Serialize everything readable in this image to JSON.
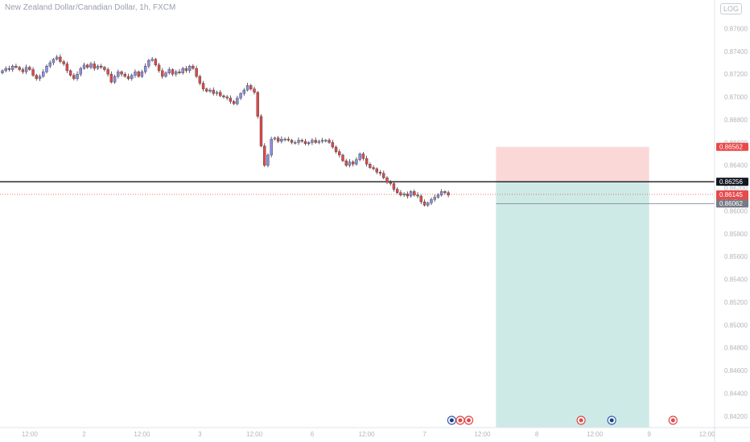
{
  "header": {
    "title": "New Zealand Dollar/Canadian Dollar, 1h, FXCM",
    "log_button": "LOG"
  },
  "colors": {
    "up": "#8c8ce6",
    "down": "#e04848",
    "wick": "#3c3c3c",
    "stop_zone": "#fbd8d8",
    "target_zone": "#cdeae7",
    "hline": "#000000",
    "price_label_red": "#e84a4a",
    "price_label_dark": "#131722",
    "price_label_gray": "#787b86"
  },
  "chart_data": {
    "type": "candlestick",
    "symbol": "NZDCAD",
    "timeframe": "1h",
    "ylim": [
      0.841,
      0.8785
    ],
    "yticks": [
      "0.87600",
      "0.87400",
      "0.87200",
      "0.87000",
      "0.86800",
      "0.86600",
      "0.86400",
      "0.86200",
      "0.86000",
      "0.85800",
      "0.85600",
      "0.85400",
      "0.85200",
      "0.85000",
      "0.84800",
      "0.84600",
      "0.84400",
      "0.84200"
    ],
    "ytick_values": [
      0.876,
      0.874,
      0.872,
      0.87,
      0.868,
      0.866,
      0.864,
      0.862,
      0.86,
      0.858,
      0.856,
      0.854,
      0.852,
      0.85,
      0.848,
      0.846,
      0.844,
      0.842
    ],
    "xticks": [
      {
        "label": "12:00",
        "bar": 8
      },
      {
        "label": "2",
        "bar": 24
      },
      {
        "label": "12:00",
        "bar": 41
      },
      {
        "label": "3",
        "bar": 58
      },
      {
        "label": "12:00",
        "bar": 74
      },
      {
        "label": "6",
        "bar": 91
      },
      {
        "label": "12:00",
        "bar": 107
      },
      {
        "label": "7",
        "bar": 124
      },
      {
        "label": "12:00",
        "bar": 141
      },
      {
        "label": "8",
        "bar": 157
      },
      {
        "label": "12:00",
        "bar": 174
      },
      {
        "label": "9",
        "bar": 190
      },
      {
        "label": "12:00",
        "bar": 207
      }
    ],
    "closes": [
      0.8723,
      0.8725,
      0.8724,
      0.8727,
      0.8726,
      0.8724,
      0.8722,
      0.8726,
      0.8724,
      0.8719,
      0.8716,
      0.8718,
      0.8722,
      0.8727,
      0.873,
      0.8733,
      0.8735,
      0.8731,
      0.8729,
      0.8723,
      0.8719,
      0.8716,
      0.872,
      0.8725,
      0.8728,
      0.8726,
      0.8729,
      0.8725,
      0.8727,
      0.8726,
      0.8724,
      0.872,
      0.8713,
      0.8718,
      0.8722,
      0.872,
      0.8718,
      0.8716,
      0.8719,
      0.8722,
      0.8718,
      0.8722,
      0.8727,
      0.8732,
      0.8733,
      0.8728,
      0.8723,
      0.8718,
      0.8721,
      0.8724,
      0.872,
      0.8722,
      0.8721,
      0.8725,
      0.8723,
      0.8727,
      0.8725,
      0.8718,
      0.8712,
      0.8707,
      0.8705,
      0.8706,
      0.8703,
      0.8704,
      0.8701,
      0.87,
      0.8699,
      0.8696,
      0.8694,
      0.8699,
      0.8703,
      0.8706,
      0.871,
      0.8707,
      0.8704,
      0.8683,
      0.8657,
      0.864,
      0.8649,
      0.8663,
      0.8664,
      0.8661,
      0.8663,
      0.8663,
      0.8662,
      0.866,
      0.866,
      0.8662,
      0.8661,
      0.8659,
      0.866,
      0.8662,
      0.866,
      0.8661,
      0.8662,
      0.8662,
      0.866,
      0.8656,
      0.8652,
      0.8649,
      0.8644,
      0.864,
      0.8643,
      0.8641,
      0.8645,
      0.865,
      0.8646,
      0.8641,
      0.8638,
      0.8637,
      0.8634,
      0.8633,
      0.8629,
      0.8625,
      0.8624,
      0.8619,
      0.8616,
      0.8614,
      0.8615,
      0.8613,
      0.8617,
      0.8614,
      0.8613,
      0.8608,
      0.8605,
      0.8607,
      0.861,
      0.8612,
      0.8614,
      0.8617,
      0.8616,
      0.8614
    ],
    "first_open": 0.8721,
    "levels": {
      "entry": 0.86256,
      "stop": 0.86562,
      "target": 0.841,
      "last": 0.86145,
      "dashed": 0.86062
    },
    "position_box_bars": [
      145,
      190
    ],
    "labels": {
      "stop": "0.86562",
      "entry": "0.86256",
      "last": "0.86145",
      "countdown": "03:45",
      "dashed": "0.86062"
    },
    "events": [
      {
        "bar": 132,
        "type": "nz"
      },
      {
        "bar": 134.5,
        "type": "ca"
      },
      {
        "bar": 137,
        "type": "ca"
      },
      {
        "bar": 170,
        "type": "ca"
      },
      {
        "bar": 179,
        "type": "nz"
      },
      {
        "bar": 197,
        "type": "ca"
      }
    ]
  }
}
